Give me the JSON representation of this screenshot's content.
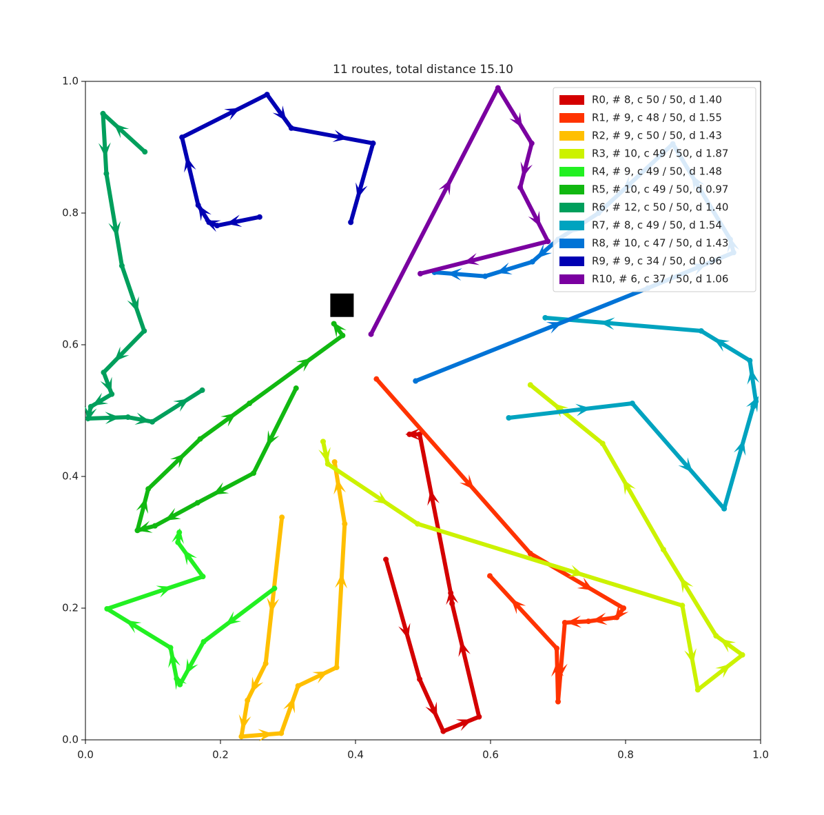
{
  "chart_data": {
    "type": "route",
    "title": "11 routes, total distance 15.10",
    "xlim": [
      0,
      1
    ],
    "ylim": [
      0,
      1
    ],
    "xticks": [
      {
        "value": 0,
        "label": "0.0"
      },
      {
        "value": 0.2,
        "label": "0.2"
      },
      {
        "value": 0.4,
        "label": "0.4"
      },
      {
        "value": 0.6,
        "label": "0.6"
      },
      {
        "value": 0.8,
        "label": "0.8"
      },
      {
        "value": 1,
        "label": "1.0"
      }
    ],
    "yticks": [
      {
        "value": 0,
        "label": "0.0"
      },
      {
        "value": 0.2,
        "label": "0.2"
      },
      {
        "value": 0.4,
        "label": "0.4"
      },
      {
        "value": 0.6,
        "label": "0.6"
      },
      {
        "value": 0.8,
        "label": "0.8"
      },
      {
        "value": 1,
        "label": "1.0"
      }
    ],
    "depot": {
      "x": 0.38,
      "y": 0.66,
      "color": "#000000"
    },
    "legend": "upper right",
    "series": [
      {
        "name": "R0, # 8, c 50 / 50, d 1.40",
        "color": "#d40000",
        "x": [
          0.445,
          0.495,
          0.53,
          0.583,
          0.543,
          0.541,
          0.495,
          0.48
        ],
        "y": [
          0.274,
          0.092,
          0.013,
          0.035,
          0.207,
          0.223,
          0.464,
          0.464
        ]
      },
      {
        "name": "R1, # 9, c 48 / 50, d 1.55",
        "color": "#ff3300",
        "x": [
          0.431,
          0.659,
          0.797,
          0.787,
          0.745,
          0.71,
          0.7,
          0.698,
          0.599
        ],
        "y": [
          0.548,
          0.283,
          0.2,
          0.186,
          0.18,
          0.178,
          0.058,
          0.139,
          0.249
        ]
      },
      {
        "name": "R2, # 9, c 50 / 50, d 1.43",
        "color": "#ffbf00",
        "x": [
          0.291,
          0.267,
          0.24,
          0.231,
          0.29,
          0.315,
          0.372,
          0.384,
          0.369
        ],
        "y": [
          0.338,
          0.116,
          0.06,
          0.005,
          0.01,
          0.082,
          0.11,
          0.328,
          0.422
        ]
      },
      {
        "name": "R3, # 10, c 49 / 50, d 1.87",
        "color": "#ccf200",
        "x": [
          0.352,
          0.359,
          0.492,
          0.884,
          0.907,
          0.973,
          0.934,
          0.856,
          0.766,
          0.659
        ],
        "y": [
          0.453,
          0.419,
          0.328,
          0.204,
          0.076,
          0.129,
          0.158,
          0.289,
          0.45,
          0.539
        ]
      },
      {
        "name": "R4, # 9, c 49 / 50, d 1.48",
        "color": "#22f022",
        "x": [
          0.28,
          0.175,
          0.14,
          0.135,
          0.126,
          0.032,
          0.174,
          0.137,
          0.139
        ],
        "y": [
          0.23,
          0.149,
          0.084,
          0.093,
          0.14,
          0.199,
          0.248,
          0.3,
          0.315
        ]
      },
      {
        "name": "R5, # 10, c 49 / 50, d 0.97",
        "color": "#11b811",
        "x": [
          0.312,
          0.249,
          0.166,
          0.103,
          0.077,
          0.093,
          0.17,
          0.243,
          0.381,
          0.368
        ],
        "y": [
          0.534,
          0.405,
          0.36,
          0.325,
          0.318,
          0.381,
          0.457,
          0.511,
          0.614,
          0.632
        ]
      },
      {
        "name": "R6, # 12, c 50 / 50, d 1.40",
        "color": "#009f5c",
        "x": [
          0.088,
          0.026,
          0.031,
          0.054,
          0.087,
          0.027,
          0.039,
          0.008,
          0.004,
          0.063,
          0.099,
          0.173
        ],
        "y": [
          0.893,
          0.951,
          0.86,
          0.72,
          0.621,
          0.558,
          0.525,
          0.506,
          0.488,
          0.49,
          0.483,
          0.531
        ]
      },
      {
        "name": "R7, # 8, c 49 / 50, d 1.54",
        "color": "#00a3bf",
        "x": [
          0.627,
          0.81,
          0.946,
          0.989,
          0.993,
          0.984,
          0.912,
          0.681
        ],
        "y": [
          0.489,
          0.511,
          0.351,
          0.506,
          0.514,
          0.576,
          0.621,
          0.641
        ]
      },
      {
        "name": "R8, # 10, c 47 / 50, d 1.43",
        "color": "#0073d6",
        "x": [
          0.489,
          0.833,
          0.96,
          0.955,
          0.87,
          0.76,
          0.7,
          0.662,
          0.592,
          0.517
        ],
        "y": [
          0.545,
          0.686,
          0.74,
          0.76,
          0.905,
          0.8,
          0.76,
          0.726,
          0.704,
          0.71
        ]
      },
      {
        "name": "R9, # 9, c 34 / 50, d 0.96",
        "color": "#0000b3",
        "x": [
          0.258,
          0.195,
          0.183,
          0.167,
          0.143,
          0.269,
          0.305,
          0.426,
          0.393
        ],
        "y": [
          0.794,
          0.781,
          0.786,
          0.812,
          0.915,
          0.98,
          0.929,
          0.906,
          0.786
        ]
      },
      {
        "name": "R10, # 6, c 37 / 50, d 1.06",
        "color": "#7a00a0",
        "x": [
          0.423,
          0.611,
          0.661,
          0.644,
          0.685,
          0.496
        ],
        "y": [
          0.616,
          0.99,
          0.906,
          0.839,
          0.757,
          0.708
        ]
      }
    ]
  }
}
